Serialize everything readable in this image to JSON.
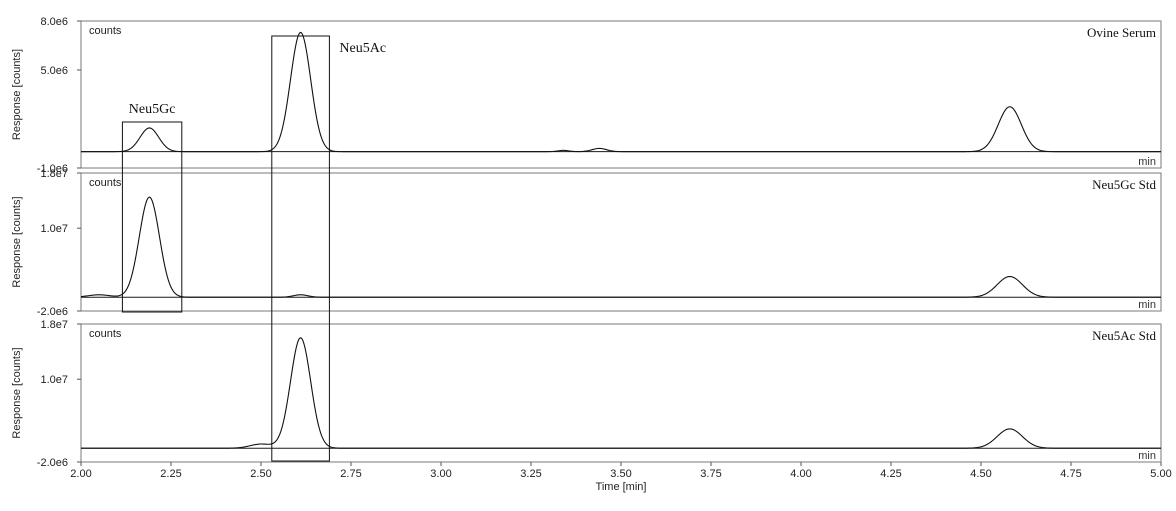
{
  "chart_data": {
    "type": "line",
    "x_label": "Time [min]",
    "x_range": [
      2.0,
      5.0
    ],
    "x_ticks": [
      "2.00",
      "2.25",
      "2.50",
      "2.75",
      "3.00",
      "3.25",
      "3.50",
      "3.75",
      "4.00",
      "4.25",
      "4.50",
      "4.75",
      "5.00"
    ],
    "panels": [
      {
        "title": "Ovine Serum",
        "unit_label": "counts",
        "y_label": "Response [counts]",
        "x_unit": "min",
        "ylim": [
          -1000000,
          8000000
        ],
        "y_ticks": [
          "8.0e6",
          "5.0e6",
          "-1.0e6"
        ],
        "baseline": 0,
        "peaks": [
          {
            "x": 2.19,
            "height": 1450000,
            "width": 0.026
          },
          {
            "x": 2.61,
            "height": 7300000,
            "width": 0.028
          },
          {
            "x": 3.34,
            "height": 80000,
            "width": 0.015
          },
          {
            "x": 3.44,
            "height": 200000,
            "width": 0.02
          },
          {
            "x": 4.58,
            "height": 2750000,
            "width": 0.032
          }
        ],
        "annotations": [
          {
            "label": "Neu5Gc",
            "x_from": 2.115,
            "x_to": 2.28
          },
          {
            "label": "Neu5Ac",
            "x_from": 2.53,
            "x_to": 2.69
          }
        ]
      },
      {
        "title": "Neu5Gc Std",
        "unit_label": "counts",
        "y_label": "Response [counts]",
        "x_unit": "min",
        "ylim": [
          -2000000,
          18000000
        ],
        "y_ticks": [
          "1.8e7",
          "1.0e7",
          "-2.0e6"
        ],
        "baseline": 0,
        "peaks": [
          {
            "x": 2.05,
            "height": 350000,
            "width": 0.03
          },
          {
            "x": 2.19,
            "height": 14500000,
            "width": 0.028
          },
          {
            "x": 2.61,
            "height": 350000,
            "width": 0.02
          },
          {
            "x": 4.58,
            "height": 3000000,
            "width": 0.035
          }
        ]
      },
      {
        "title": "Neu5Ac Std",
        "unit_label": "counts",
        "y_label": "Response [counts]",
        "x_unit": "min",
        "ylim": [
          -2000000,
          18000000
        ],
        "y_ticks": [
          "1.8e7",
          "1.0e7",
          "-2.0e6"
        ],
        "baseline": 0,
        "peaks": [
          {
            "x": 2.5,
            "height": 600000,
            "width": 0.03
          },
          {
            "x": 2.61,
            "height": 16000000,
            "width": 0.028
          },
          {
            "x": 4.58,
            "height": 2800000,
            "width": 0.035
          }
        ]
      }
    ]
  }
}
